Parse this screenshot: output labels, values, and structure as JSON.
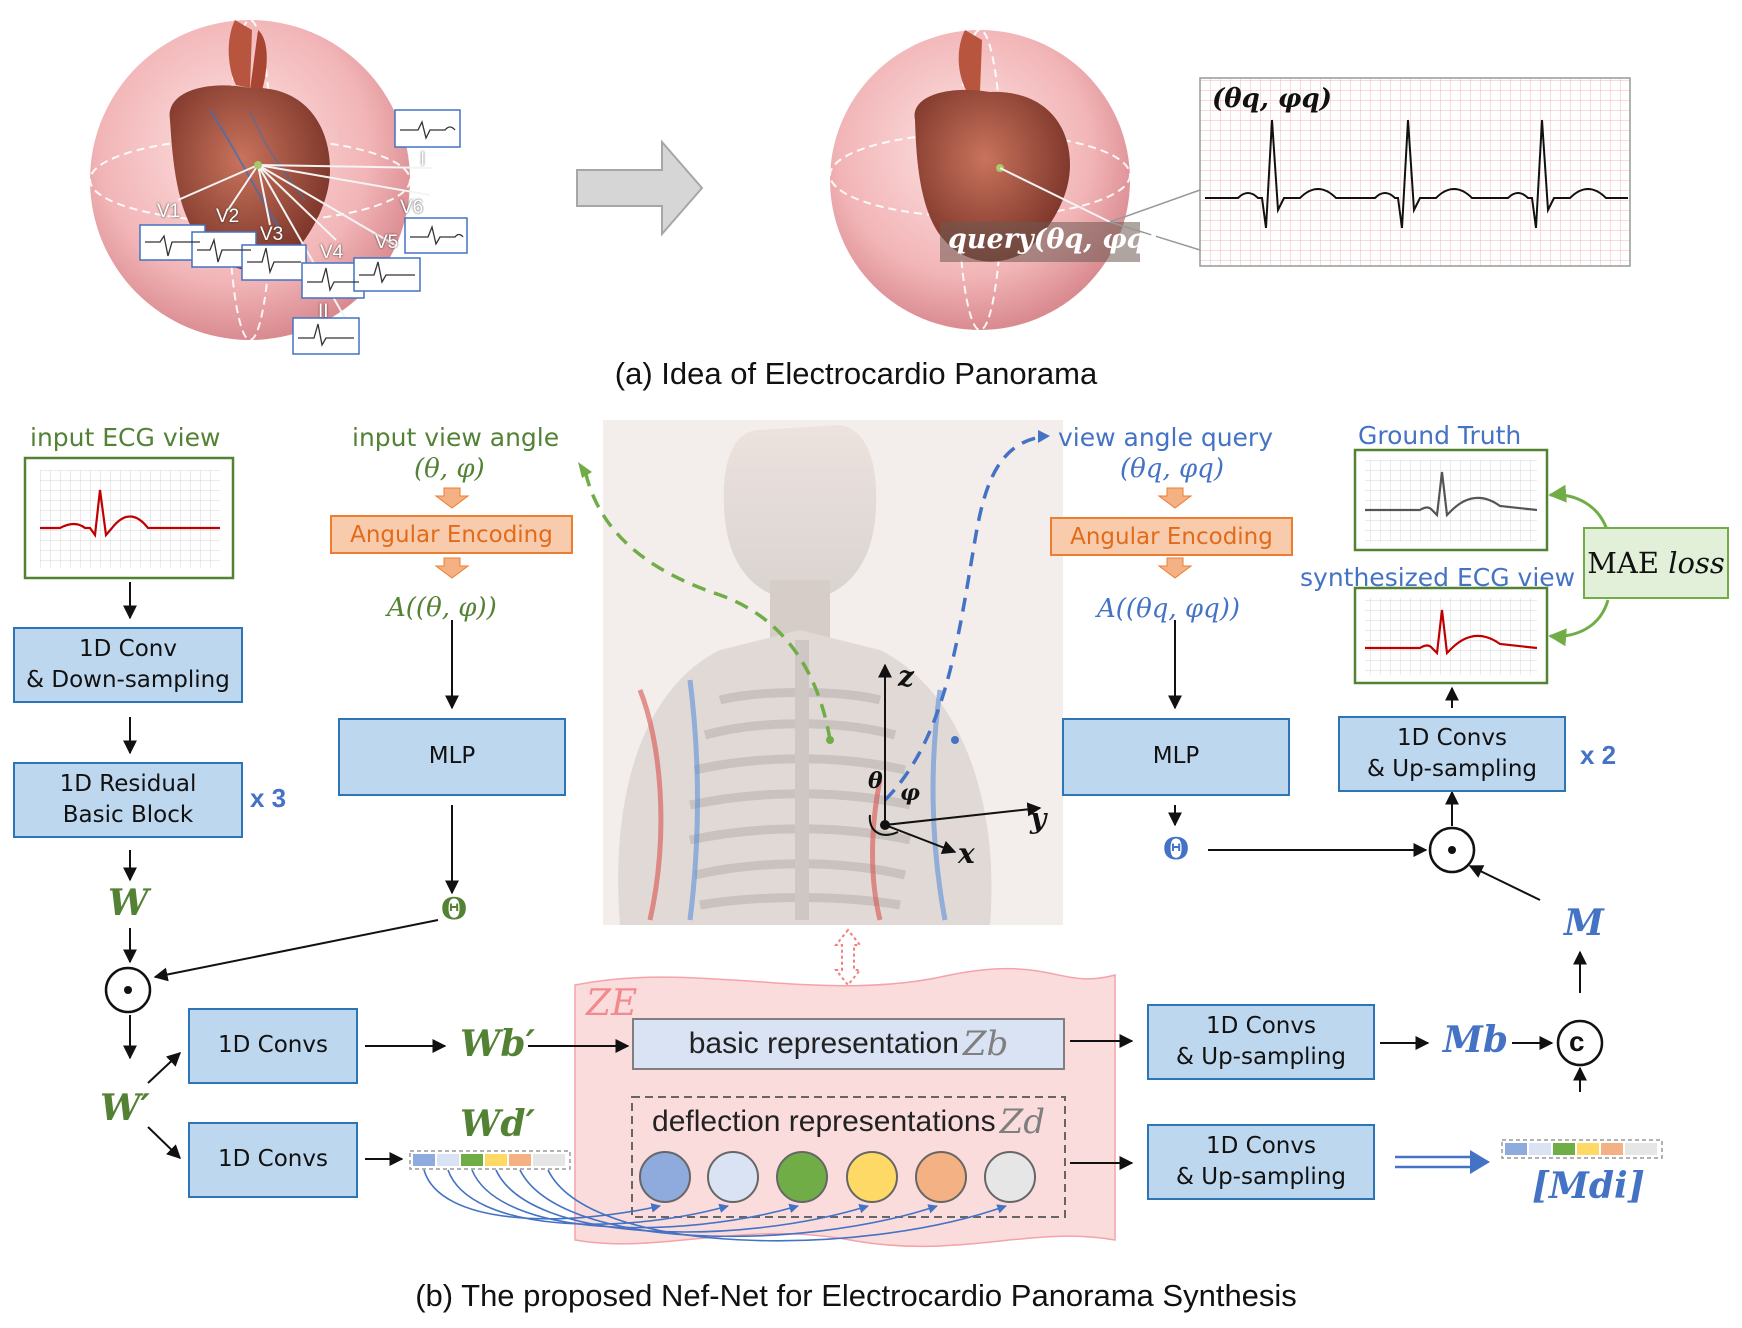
{
  "panel_a": {
    "caption": "(a) Idea of Electrocardio Panorama",
    "leads": [
      "V1",
      "V2",
      "V3",
      "V4",
      "V5",
      "V6",
      "I",
      "II"
    ],
    "angle_label": "(θq, φq)",
    "query_label": "query(θq, φq)"
  },
  "panel_b": {
    "caption": "(b) The proposed Nef-Net for Electrocardio Panorama Synthesis",
    "input_ecg_view": "input ECG view",
    "conv_down": [
      "1D Conv",
      "& Down-sampling"
    ],
    "residual_block": [
      "1D Residual",
      "Basic Block"
    ],
    "x3": "x 3",
    "W": "W",
    "W_prime": "W′",
    "conv1": "1D Convs",
    "conv2": "1D Convs",
    "Wb_prime": "Wb′",
    "Wd_prime": "Wd′",
    "input_view_angle": "input view angle",
    "input_angle": "(θ, φ)",
    "angular_encoding_left": "Angular Encoding",
    "encoded_left": "A((θ, φ))",
    "mlp_left": "MLP",
    "theta_left": "Θ",
    "view_angle_query": "view angle query",
    "query_angle": "(θq, φq)",
    "angular_encoding_right": "Angular Encoding",
    "encoded_right": "A((θq, φq))",
    "mlp_right": "MLP",
    "theta_right": "Θ",
    "axis_z": "z",
    "axis_y": "y",
    "axis_x": "x",
    "axis_theta": "θ",
    "axis_phi": "φ",
    "ZE": "ZE",
    "basic_representation": "basic representation",
    "Zb": "Zb",
    "deflection_representations": "deflection representations",
    "Zd": "Zd",
    "up_conv_b": [
      "1D Convs",
      "& Up-sampling"
    ],
    "up_conv_d": [
      "1D Convs",
      "& Up-sampling"
    ],
    "Mb": "Mb",
    "Mdi": "[Mdi]",
    "concat": "c",
    "M": "M",
    "up_conv_final": [
      "1D Convs",
      "& Up-sampling"
    ],
    "x2": "x 2",
    "ground_truth": "Ground Truth",
    "synthesized_view": "synthesized ECG view",
    "mae_loss": [
      "MAE",
      "loss"
    ]
  },
  "colors": {
    "box_fill": "#bdd7ee",
    "box_border": "#2e75b6",
    "green": "#548235",
    "blue": "#4472c4",
    "orange": "#ed7d31",
    "pink_region": "#fbdcdc",
    "deflection_circles": [
      "#8faadc",
      "#dae3f3",
      "#70ad47",
      "#ffd966",
      "#f4b183",
      "#e7e6e6"
    ]
  },
  "icons": [
    "heart-sphere-illustration",
    "right-arrow-icon",
    "human-torso-illustration",
    "ecg-waveform-icon",
    "hadamard-product-icon",
    "concat-icon"
  ]
}
